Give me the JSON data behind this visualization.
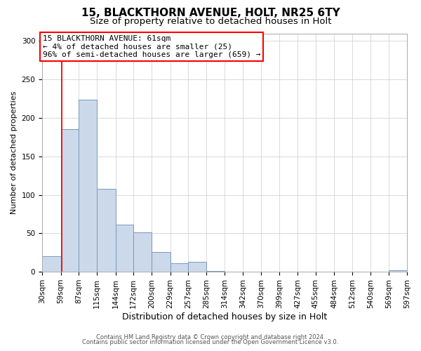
{
  "title": "15, BLACKTHORN AVENUE, HOLT, NR25 6TY",
  "subtitle": "Size of property relative to detached houses in Holt",
  "xlabel": "Distribution of detached houses by size in Holt",
  "ylabel": "Number of detached properties",
  "bar_color": "#ccd9ea",
  "bar_edgecolor": "#7799bb",
  "redline_x": 61,
  "annotation_title": "15 BLACKTHORN AVENUE: 61sqm",
  "annotation_line2": "← 4% of detached houses are smaller (25)",
  "annotation_line3": "96% of semi-detached houses are larger (659) →",
  "bins": [
    30,
    59,
    87,
    115,
    144,
    172,
    200,
    229,
    257,
    285,
    314,
    342,
    370,
    399,
    427,
    455,
    484,
    512,
    540,
    569,
    597
  ],
  "counts": [
    20,
    185,
    224,
    108,
    61,
    51,
    26,
    11,
    13,
    1,
    0,
    0,
    0,
    0,
    0,
    0,
    0,
    0,
    0,
    2
  ],
  "ylim": [
    0,
    310
  ],
  "yticks": [
    0,
    50,
    100,
    150,
    200,
    250,
    300
  ],
  "footer_line1": "Contains HM Land Registry data © Crown copyright and database right 2024.",
  "footer_line2": "Contains public sector information licensed under the Open Government Licence v3.0.",
  "bg_color": "#ffffff",
  "plot_bg_color": "#ffffff",
  "title_fontsize": 11,
  "subtitle_fontsize": 9.5,
  "xlabel_fontsize": 9,
  "ylabel_fontsize": 8,
  "tick_fontsize": 7.5,
  "footer_fontsize": 6,
  "annotation_fontsize": 8
}
